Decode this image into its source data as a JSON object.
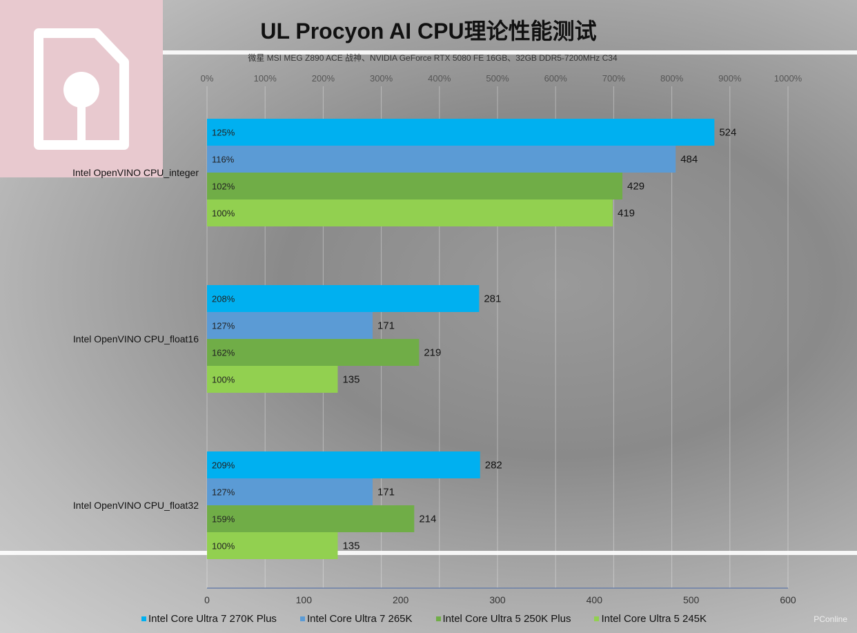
{
  "chart_data": {
    "type": "bar",
    "orientation": "horizontal",
    "title": "UL Procyon  AI CPU理论性能测试",
    "subtitle": "微星 MSI MEG Z890 ACE 战神、NVIDIA GeForce RTX 5080 FE 16GB、32GB DDR5-7200MHz  C34",
    "categories": [
      "Intel OpenVINO CPU_integer",
      "Intel OpenVINO CPU_float16",
      "Intel OpenVINO CPU_float32"
    ],
    "series": [
      {
        "name": "Intel Core Ultra 7 270K Plus",
        "color": "#00b0f0",
        "values": [
          524,
          281,
          282
        ],
        "percent_labels": [
          "125%",
          "208%",
          "209%"
        ]
      },
      {
        "name": "Intel Core Ultra 7 265K",
        "color": "#5b9bd5",
        "values": [
          484,
          171,
          171
        ],
        "percent_labels": [
          "116%",
          "127%",
          "127%"
        ]
      },
      {
        "name": "Intel Core Ultra 5 250K Plus",
        "color": "#70ad47",
        "values": [
          429,
          219,
          214
        ],
        "percent_labels": [
          "102%",
          "162%",
          "159%"
        ]
      },
      {
        "name": "Intel Core Ultra 5 245K",
        "color": "#92d050",
        "values": [
          419,
          135,
          135
        ],
        "percent_labels": [
          "100%",
          "100%",
          "100%"
        ]
      }
    ],
    "xlim": [
      0,
      600
    ],
    "xticks": [
      "0",
      "100",
      "200",
      "300",
      "400",
      "500",
      "600"
    ],
    "top_axis_ticks": [
      "0%",
      "100%",
      "200%",
      "300%",
      "400%",
      "500%",
      "600%",
      "700%",
      "800%",
      "900%",
      "1000%"
    ],
    "legend_position": "bottom",
    "grid": true
  },
  "brand": "PConline"
}
